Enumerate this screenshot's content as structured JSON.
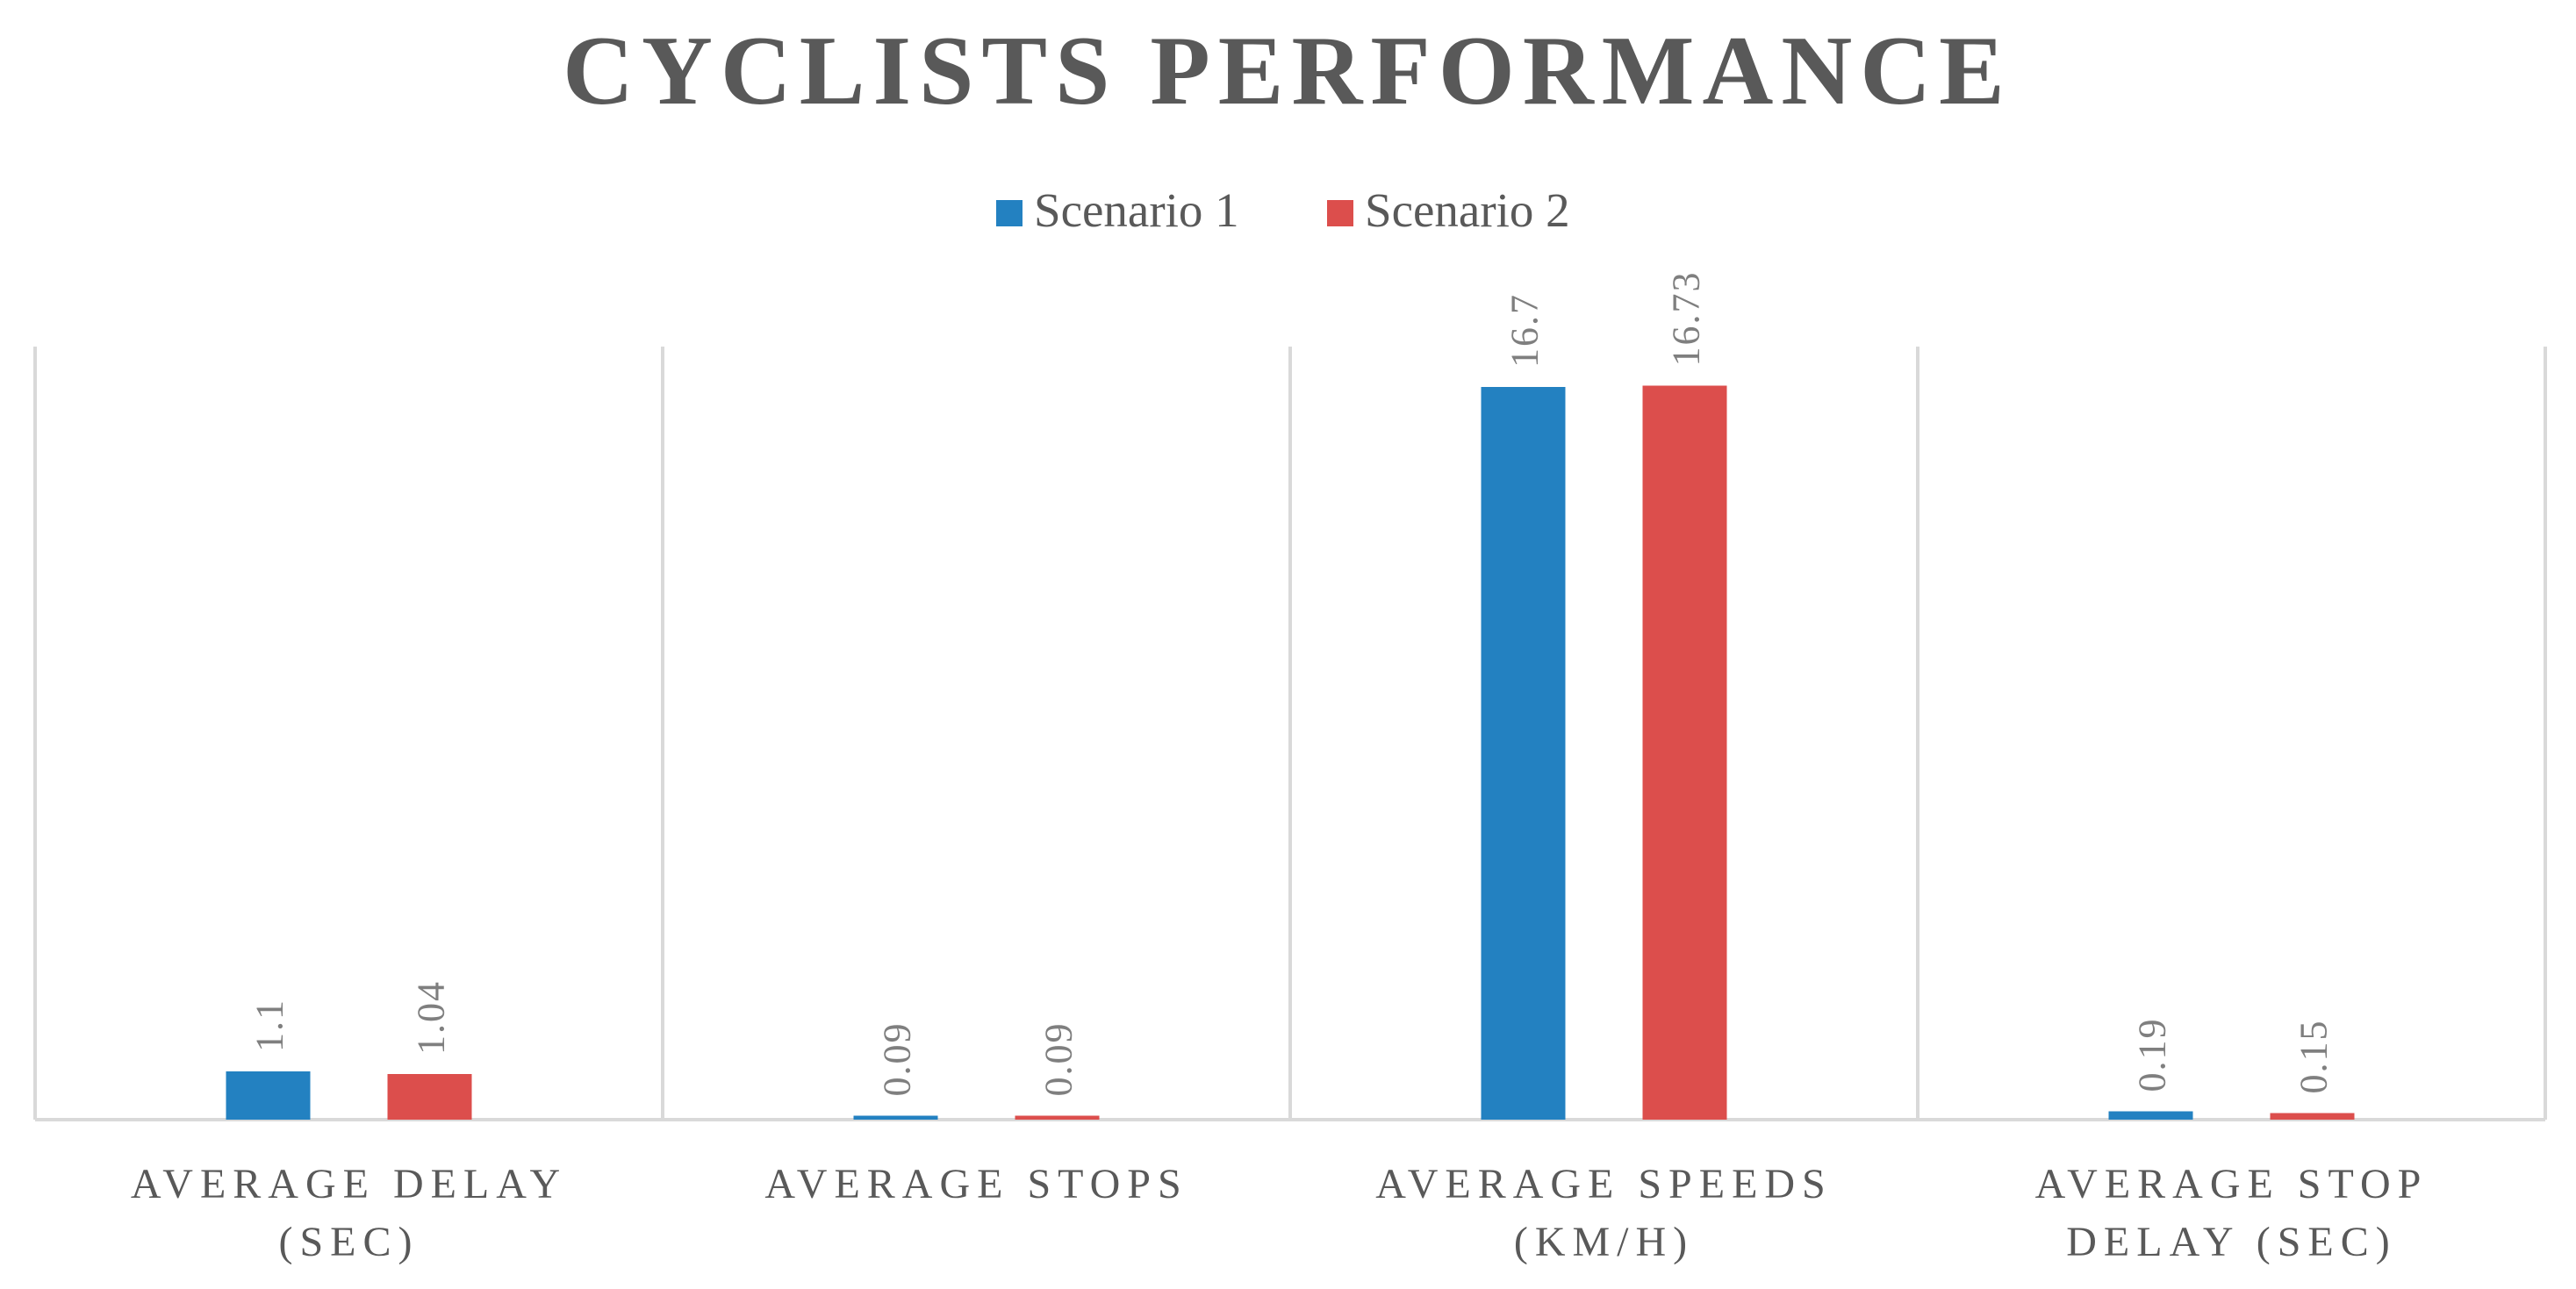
{
  "chart_data": {
    "type": "bar",
    "title": "CYCLISTS PERFORMANCE",
    "categories": [
      [
        "AVERAGE DELAY",
        "(SEC)"
      ],
      [
        "AVERAGE STOPS"
      ],
      [
        "AVERAGE SPEEDS",
        "(KM/H)"
      ],
      [
        "AVERAGE STOP",
        "DELAY (SEC)"
      ]
    ],
    "series": [
      {
        "name": "Scenario 1",
        "color": "#2381C1",
        "values": [
          1.1,
          0.09,
          16.7,
          0.19
        ],
        "labels": [
          "1.1",
          "0.09",
          "16.7",
          "0.19"
        ]
      },
      {
        "name": "Scenario 2",
        "color": "#DC4E4C",
        "values": [
          1.04,
          0.09,
          16.73,
          0.15
        ],
        "labels": [
          "1.04",
          "0.09",
          "16.73",
          "0.15"
        ]
      }
    ],
    "ylim": [
      0,
      18
    ],
    "xlabel": "",
    "ylabel": "",
    "grid": false,
    "legend": "top-center",
    "data_labels": "rotated-vertical"
  }
}
